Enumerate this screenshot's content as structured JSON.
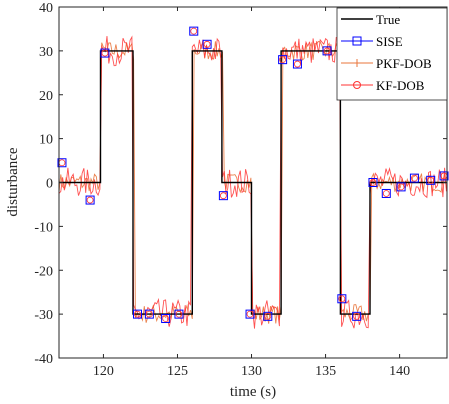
{
  "chart_data": {
    "type": "line",
    "xlabel": "time (s)",
    "ylabel": "disturbance",
    "xlim": [
      117,
      143.2
    ],
    "ylim": [
      -40,
      40
    ],
    "xticks": [
      120,
      125,
      130,
      135,
      140
    ],
    "yticks": [
      -40,
      -30,
      -20,
      -10,
      0,
      10,
      20,
      30,
      40
    ],
    "grid": false,
    "legend_position": "top-right",
    "colors": {
      "True": "#000000",
      "SISE": "#0000ff",
      "PKF-DOB": "#e8743b",
      "KF-DOB": "#ff3333",
      "noisy_overlay": "#e0303a"
    },
    "legend": [
      "True",
      "SISE",
      "PKF-DOB",
      "KF-DOB"
    ],
    "series": [
      {
        "name": "True",
        "x": [
          117,
          119.8,
          119.8,
          122,
          122,
          126,
          126,
          128,
          128,
          130,
          130,
          132,
          132,
          136,
          136,
          138,
          138,
          143.2
        ],
        "values": [
          0,
          0,
          30,
          30,
          -30,
          -30,
          30,
          30,
          0,
          0,
          -30,
          -30,
          30,
          30,
          -30,
          -30,
          0,
          0
        ]
      },
      {
        "name": "SISE",
        "x": [
          117.2,
          119.1,
          120.1,
          122.3,
          123.1,
          124.2,
          125.1,
          126.1,
          127.0,
          128.1,
          129.9,
          131.1,
          132.1,
          133.1,
          135.1,
          136.1,
          137.1,
          138.2,
          139.1,
          140.1,
          141.0,
          142.1,
          143.0
        ],
        "values": [
          4.5,
          -4.0,
          29.5,
          -30.0,
          -30.0,
          -31.0,
          -30.0,
          34.5,
          31.5,
          -3.0,
          -30.0,
          -30.5,
          28.0,
          27.0,
          30.0,
          -26.5,
          -30.5,
          0.0,
          -2.5,
          -1.0,
          1.0,
          0.5,
          1.5
        ]
      }
    ]
  }
}
